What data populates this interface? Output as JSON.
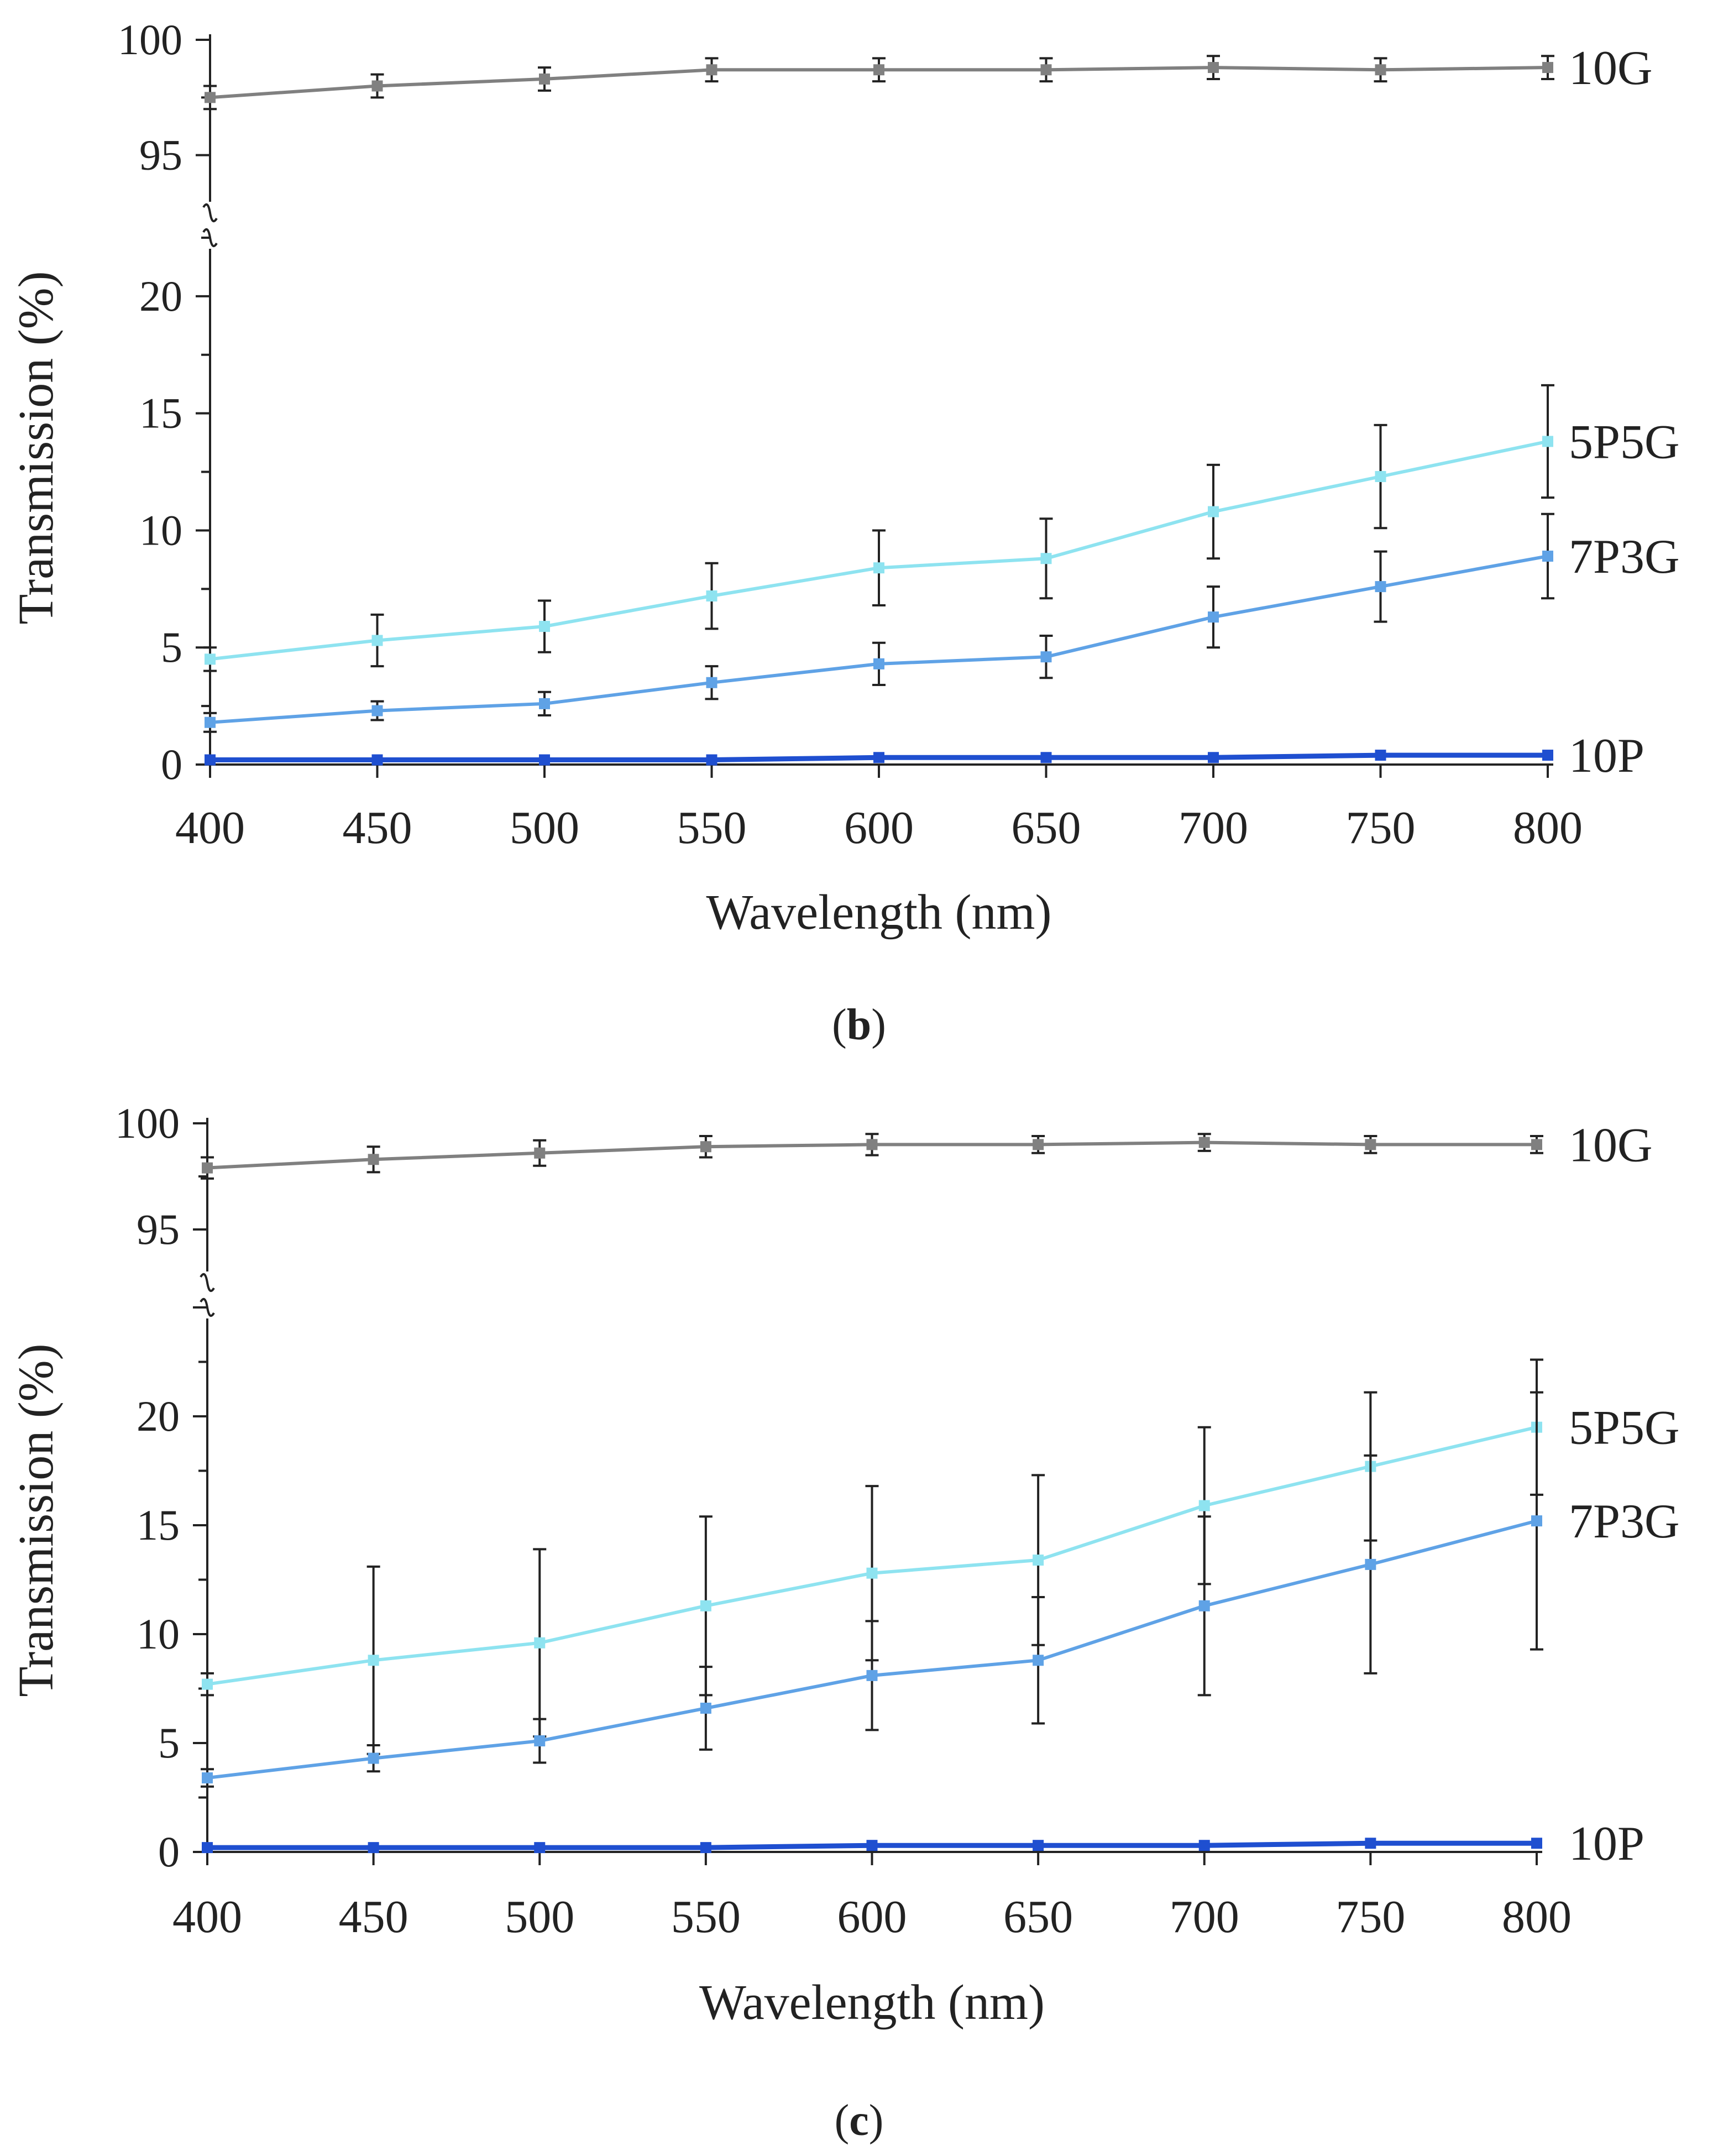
{
  "chart_data": [
    {
      "type": "line",
      "panel_label": "b",
      "caption_open": "(",
      "caption_close": ")",
      "xlabel": "Wavelength (nm)",
      "ylabel": "Transmission (%)",
      "x": [
        400,
        450,
        500,
        550,
        600,
        650,
        700,
        750,
        800
      ],
      "xlim": [
        400,
        800
      ],
      "ylim_lower": [
        0,
        22.5
      ],
      "ylim_upper": [
        92.5,
        100
      ],
      "y_ticks_lower": [
        0,
        5,
        10,
        15,
        20
      ],
      "y_ticks_upper": [
        95,
        100
      ],
      "axis_break": true,
      "series": [
        {
          "name": "10G",
          "color": "#808080",
          "values": [
            97.5,
            98.0,
            98.3,
            98.7,
            98.7,
            98.7,
            98.8,
            98.7,
            98.8
          ],
          "errors": [
            0.5,
            0.5,
            0.5,
            0.5,
            0.5,
            0.5,
            0.5,
            0.5,
            0.5
          ]
        },
        {
          "name": "5P5G",
          "color": "#8ee3f0",
          "values": [
            4.5,
            5.3,
            5.9,
            7.2,
            8.4,
            8.8,
            10.8,
            12.3,
            13.8
          ],
          "errors": [
            0.5,
            1.1,
            1.1,
            1.4,
            1.6,
            1.7,
            2.0,
            2.2,
            2.4
          ]
        },
        {
          "name": "7P3G",
          "color": "#5fa2e6",
          "values": [
            1.8,
            2.3,
            2.6,
            3.5,
            4.3,
            4.6,
            6.3,
            7.6,
            8.9
          ],
          "errors": [
            0.4,
            0.4,
            0.5,
            0.7,
            0.9,
            0.9,
            1.3,
            1.5,
            1.8
          ]
        },
        {
          "name": "10P",
          "color": "#1f4fd0",
          "values": [
            0.2,
            0.2,
            0.2,
            0.2,
            0.3,
            0.3,
            0.3,
            0.4,
            0.4
          ],
          "errors": [
            0,
            0,
            0,
            0,
            0,
            0,
            0,
            0,
            0
          ]
        }
      ]
    },
    {
      "type": "line",
      "panel_label": "c",
      "caption_open": "(",
      "caption_close": ")",
      "xlabel": "Wavelength (nm)",
      "ylabel": "Transmission (%)",
      "x": [
        400,
        450,
        500,
        550,
        600,
        650,
        700,
        750,
        800
      ],
      "xlim": [
        400,
        800
      ],
      "ylim_lower": [
        0,
        25
      ],
      "ylim_upper": [
        92.5,
        100
      ],
      "y_ticks_lower": [
        0,
        5,
        10,
        15,
        20
      ],
      "y_ticks_upper": [
        95,
        100
      ],
      "axis_break": true,
      "series": [
        {
          "name": "10G",
          "color": "#808080",
          "values": [
            97.9,
            98.3,
            98.6,
            98.9,
            99.0,
            99.0,
            99.1,
            99.0,
            99.0
          ],
          "errors": [
            0.5,
            0.6,
            0.6,
            0.5,
            0.5,
            0.4,
            0.4,
            0.4,
            0.4
          ]
        },
        {
          "name": "5P5G",
          "color": "#8ee3f0",
          "values": [
            7.7,
            8.8,
            9.6,
            11.3,
            12.8,
            13.4,
            15.9,
            17.7,
            19.5
          ],
          "errors": [
            0.5,
            4.3,
            4.3,
            4.1,
            4.0,
            3.9,
            3.6,
            3.4,
            3.1
          ]
        },
        {
          "name": "7P3G",
          "color": "#5fa2e6",
          "values": [
            3.4,
            4.3,
            5.1,
            6.6,
            8.1,
            8.8,
            11.3,
            13.2,
            15.2
          ],
          "errors": [
            0.4,
            0.6,
            1.0,
            1.9,
            2.5,
            2.9,
            4.1,
            5.0,
            5.9
          ]
        },
        {
          "name": "10P",
          "color": "#1f4fd0",
          "values": [
            0.2,
            0.2,
            0.2,
            0.2,
            0.3,
            0.3,
            0.3,
            0.4,
            0.4
          ],
          "errors": [
            0,
            0,
            0,
            0,
            0,
            0,
            0,
            0,
            0
          ]
        }
      ]
    }
  ]
}
